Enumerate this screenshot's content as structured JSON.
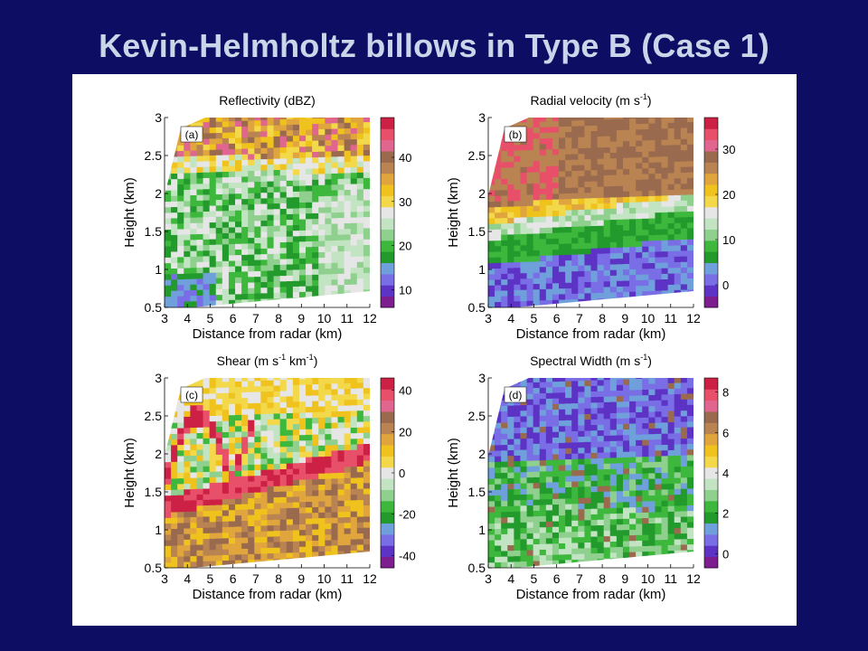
{
  "slide": {
    "title": "Kevin-Helmholtz billows in Type B (Case 1)",
    "background_color": "#0d0d63",
    "title_color": "#c9d6ea"
  },
  "chart_data": [
    {
      "type": "heatmap",
      "panel": "(a)",
      "title": "Reflectivity (dBZ)",
      "xlabel": "Distance from radar (km)",
      "ylabel": "Height (km)",
      "x_ticks": [
        "3",
        "4",
        "5",
        "6",
        "7",
        "8",
        "9",
        "10",
        "11",
        "12"
      ],
      "y_ticks": [
        "0.5",
        "1",
        "1.5",
        "2",
        "2.5",
        "3"
      ],
      "xlim": [
        3,
        12
      ],
      "ylim": [
        0.5,
        3
      ],
      "colorbar": {
        "ticks": [
          "10",
          "20",
          "30",
          "40"
        ],
        "tick_values": [
          10,
          20,
          30,
          40
        ],
        "range": [
          6,
          49
        ]
      }
    },
    {
      "type": "heatmap",
      "panel": "(b)",
      "title": "Radial velocity (m s",
      "title_sup": "-1",
      "title_end": ")",
      "xlabel": "Distance from radar (km)",
      "ylabel": "Height (km)",
      "x_ticks": [
        "3",
        "4",
        "5",
        "6",
        "7",
        "8",
        "9",
        "10",
        "11",
        "12"
      ],
      "y_ticks": [
        "0.5",
        "1",
        "1.5",
        "2",
        "2.5",
        "3"
      ],
      "xlim": [
        3,
        12
      ],
      "ylim": [
        0.5,
        3
      ],
      "colorbar": {
        "ticks": [
          "0",
          "10",
          "20",
          "30"
        ],
        "tick_values": [
          0,
          10,
          20,
          30
        ],
        "range": [
          -5,
          37
        ]
      }
    },
    {
      "type": "heatmap",
      "panel": "(c)",
      "title": "Shear (m s",
      "title_sup": "-1",
      "title_mid": " km",
      "title_sup2": "-1",
      "title_end": ")",
      "xlabel": "Distance from radar (km)",
      "ylabel": "Height (km)",
      "x_ticks": [
        "3",
        "4",
        "5",
        "6",
        "7",
        "8",
        "9",
        "10",
        "11",
        "12"
      ],
      "y_ticks": [
        "0.5",
        "1",
        "1.5",
        "2",
        "2.5",
        "3"
      ],
      "xlim": [
        3,
        12
      ],
      "ylim": [
        0.5,
        3
      ],
      "colorbar": {
        "ticks": [
          "-40",
          "-20",
          "0",
          "20",
          "40"
        ],
        "tick_values": [
          -40,
          -20,
          0,
          20,
          40
        ],
        "range": [
          -46,
          46
        ]
      }
    },
    {
      "type": "heatmap",
      "panel": "(d)",
      "title": "Spectral Width (m s",
      "title_sup": "-1",
      "title_end": ")",
      "xlabel": "Distance from radar (km)",
      "ylabel": "Height (km)",
      "x_ticks": [
        "3",
        "4",
        "5",
        "6",
        "7",
        "8",
        "9",
        "10",
        "11",
        "12"
      ],
      "y_ticks": [
        "0.5",
        "1",
        "1.5",
        "2",
        "2.5",
        "3"
      ],
      "xlim": [
        3,
        12
      ],
      "ylim": [
        0.5,
        3
      ],
      "colorbar": {
        "ticks": [
          "0",
          "2",
          "4",
          "6",
          "8"
        ],
        "tick_values": [
          0,
          2,
          4,
          6,
          8
        ],
        "range": [
          -0.7,
          8.7
        ]
      }
    }
  ],
  "colormap": [
    "#7d1d8f",
    "#5c33c4",
    "#7a6ee6",
    "#6fa0dc",
    "#239a2c",
    "#3db83d",
    "#8fd08f",
    "#c3e4c3",
    "#e6e6e6",
    "#f3d84a",
    "#efc21d",
    "#e0a63d",
    "#b98352",
    "#9a6a4e",
    "#e0668f",
    "#e8506a",
    "#cc2145"
  ]
}
